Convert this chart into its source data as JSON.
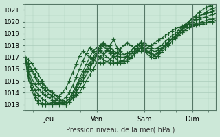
{
  "title": "",
  "xlabel": "Pression niveau de la mer( hPa )",
  "ylabel": "",
  "ylim": [
    1012.5,
    1021.5
  ],
  "xlim": [
    0,
    96
  ],
  "yticks": [
    1013,
    1014,
    1015,
    1016,
    1017,
    1018,
    1019,
    1020,
    1021
  ],
  "xtick_positions": [
    12,
    36,
    60,
    84
  ],
  "xtick_labels": [
    "Jeu",
    "Ven",
    "Sam",
    "Dim"
  ],
  "bg_color": "#cce8d8",
  "grid_color": "#aaccbb",
  "line_color": "#1a5c2a",
  "marker": "+",
  "markersize": 4,
  "linewidth": 0.9,
  "curves": [
    [
      1017.0,
      1016.8,
      1016.5,
      1016.0,
      1015.5,
      1015.0,
      1014.5,
      1014.2,
      1014.0,
      1013.8,
      1013.5,
      1013.2,
      1013.0,
      1013.2,
      1013.5,
      1013.8,
      1014.0,
      1014.5,
      1015.0,
      1015.5,
      1016.0,
      1016.5,
      1017.0,
      1017.2,
      1017.5,
      1018.0,
      1018.5,
      1017.8,
      1017.5,
      1017.2,
      1017.3,
      1017.5,
      1017.8,
      1018.0,
      1018.3,
      1018.2,
      1018.0,
      1017.8,
      1017.7,
      1017.8,
      1018.0,
      1018.3,
      1018.5,
      1018.8,
      1019.0,
      1019.3,
      1019.5,
      1019.8,
      1020.0,
      1020.3,
      1020.5,
      1020.8,
      1021.0,
      1021.2,
      1021.3,
      1021.4,
      1021.5
    ],
    [
      1017.0,
      1016.5,
      1016.0,
      1015.5,
      1015.0,
      1014.8,
      1014.5,
      1014.2,
      1014.0,
      1013.8,
      1013.5,
      1013.3,
      1013.2,
      1013.5,
      1014.0,
      1014.5,
      1015.0,
      1015.5,
      1016.0,
      1016.5,
      1017.0,
      1017.5,
      1018.0,
      1018.2,
      1018.0,
      1017.8,
      1017.5,
      1017.3,
      1017.2,
      1017.2,
      1017.3,
      1017.5,
      1017.8,
      1018.0,
      1018.2,
      1018.0,
      1017.8,
      1017.6,
      1017.5,
      1017.6,
      1017.8,
      1018.0,
      1018.3,
      1018.5,
      1018.8,
      1019.0,
      1019.3,
      1019.6,
      1019.8,
      1020.0,
      1020.2,
      1020.4,
      1020.6,
      1020.8,
      1021.0,
      1021.1,
      1021.2
    ],
    [
      1017.0,
      1016.3,
      1015.8,
      1015.3,
      1014.8,
      1014.5,
      1014.2,
      1013.9,
      1013.7,
      1013.5,
      1013.3,
      1013.1,
      1013.0,
      1013.3,
      1013.8,
      1014.3,
      1014.8,
      1015.3,
      1015.8,
      1016.3,
      1016.8,
      1017.3,
      1017.8,
      1018.2,
      1017.8,
      1017.5,
      1017.3,
      1017.1,
      1017.0,
      1017.0,
      1017.1,
      1017.3,
      1017.5,
      1017.8,
      1018.0,
      1017.8,
      1017.5,
      1017.3,
      1017.2,
      1017.4,
      1017.7,
      1018.0,
      1018.2,
      1018.5,
      1018.8,
      1019.1,
      1019.4,
      1019.7,
      1020.0,
      1020.2,
      1020.4,
      1020.5,
      1020.6,
      1020.7,
      1020.8,
      1020.9,
      1021.0
    ],
    [
      1017.0,
      1016.0,
      1015.2,
      1014.7,
      1014.3,
      1014.0,
      1013.8,
      1013.6,
      1013.4,
      1013.2,
      1013.1,
      1013.0,
      1013.0,
      1013.2,
      1013.6,
      1014.0,
      1014.5,
      1015.0,
      1015.5,
      1016.0,
      1016.6,
      1017.1,
      1017.6,
      1018.0,
      1017.6,
      1017.3,
      1017.0,
      1016.8,
      1016.7,
      1016.7,
      1016.8,
      1017.0,
      1017.3,
      1017.6,
      1017.9,
      1017.7,
      1017.4,
      1017.2,
      1017.1,
      1017.3,
      1017.6,
      1017.9,
      1018.2,
      1018.5,
      1018.8,
      1019.0,
      1019.3,
      1019.5,
      1019.8,
      1020.0,
      1020.1,
      1020.2,
      1020.3,
      1020.4,
      1020.5,
      1020.6,
      1020.7
    ],
    [
      1017.0,
      1015.8,
      1014.8,
      1014.2,
      1013.8,
      1013.5,
      1013.3,
      1013.1,
      1013.0,
      1013.0,
      1013.0,
      1013.1,
      1013.2,
      1013.5,
      1014.0,
      1014.6,
      1015.2,
      1015.8,
      1016.4,
      1017.0,
      1017.5,
      1017.8,
      1017.5,
      1017.3,
      1017.0,
      1016.8,
      1016.6,
      1016.5,
      1016.5,
      1016.5,
      1016.7,
      1016.9,
      1017.2,
      1017.5,
      1017.8,
      1017.5,
      1017.2,
      1017.0,
      1016.9,
      1017.1,
      1017.4,
      1017.7,
      1018.0,
      1018.3,
      1018.6,
      1018.8,
      1019.1,
      1019.3,
      1019.5,
      1019.7,
      1019.8,
      1019.9,
      1020.0,
      1020.1,
      1020.2,
      1020.2,
      1020.3
    ],
    [
      1017.0,
      1015.5,
      1014.5,
      1013.8,
      1013.4,
      1013.1,
      1013.0,
      1013.0,
      1013.0,
      1013.1,
      1013.2,
      1013.4,
      1013.6,
      1014.0,
      1014.6,
      1015.3,
      1016.0,
      1016.7,
      1017.3,
      1017.8,
      1017.5,
      1017.2,
      1017.0,
      1016.8,
      1016.6,
      1016.5,
      1016.5,
      1016.5,
      1016.6,
      1016.8,
      1017.0,
      1017.2,
      1017.5,
      1017.8,
      1018.0,
      1017.7,
      1017.4,
      1017.2,
      1017.1,
      1017.3,
      1017.6,
      1017.9,
      1018.2,
      1018.5,
      1018.7,
      1018.9,
      1019.1,
      1019.3,
      1019.5,
      1019.6,
      1019.7,
      1019.8,
      1019.8,
      1019.9,
      1020.0,
      1020.0,
      1020.1
    ],
    [
      1017.0,
      1015.2,
      1014.2,
      1013.5,
      1013.1,
      1013.0,
      1013.0,
      1013.1,
      1013.2,
      1013.4,
      1013.7,
      1014.0,
      1014.4,
      1015.0,
      1015.7,
      1016.4,
      1017.1,
      1017.5,
      1017.2,
      1017.0,
      1016.8,
      1016.6,
      1016.5,
      1016.5,
      1016.6,
      1016.8,
      1017.1,
      1017.4,
      1017.7,
      1018.0,
      1018.2,
      1018.0,
      1017.8,
      1017.6,
      1017.5,
      1017.6,
      1017.8,
      1018.0,
      1018.2,
      1018.4,
      1018.6,
      1018.8,
      1019.0,
      1019.2,
      1019.4,
      1019.5,
      1019.6,
      1019.7,
      1019.8,
      1019.8,
      1019.8,
      1019.9,
      1019.9,
      1019.9,
      1020.0,
      1020.0,
      1020.1
    ]
  ]
}
